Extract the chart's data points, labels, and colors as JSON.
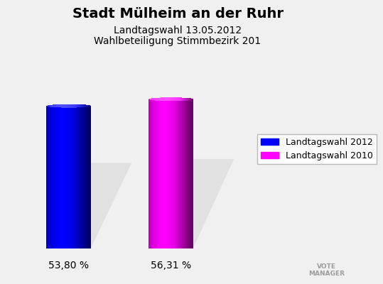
{
  "title": "Stadt Mülheim an der Ruhr",
  "subtitle1": "Landtagswahl 13.05.2012",
  "subtitle2": "Wahlbeteiligung Stimmbezirk 201",
  "categories": [
    "Landtagswahl 2012",
    "Landtagswahl 2010"
  ],
  "values": [
    53.8,
    56.31
  ],
  "labels": [
    "53,80 %",
    "56,31 %"
  ],
  "bar_colors": [
    "#0000ff",
    "#ff00ff"
  ],
  "bar_positions": [
    0.18,
    0.48
  ],
  "bar_width": 0.13,
  "ylim": [
    0,
    75
  ],
  "xlim": [
    0,
    1
  ],
  "background_color": "#f0f0f0",
  "title_fontsize": 14,
  "subtitle_fontsize": 10,
  "label_fontsize": 10,
  "legend_fontsize": 9
}
